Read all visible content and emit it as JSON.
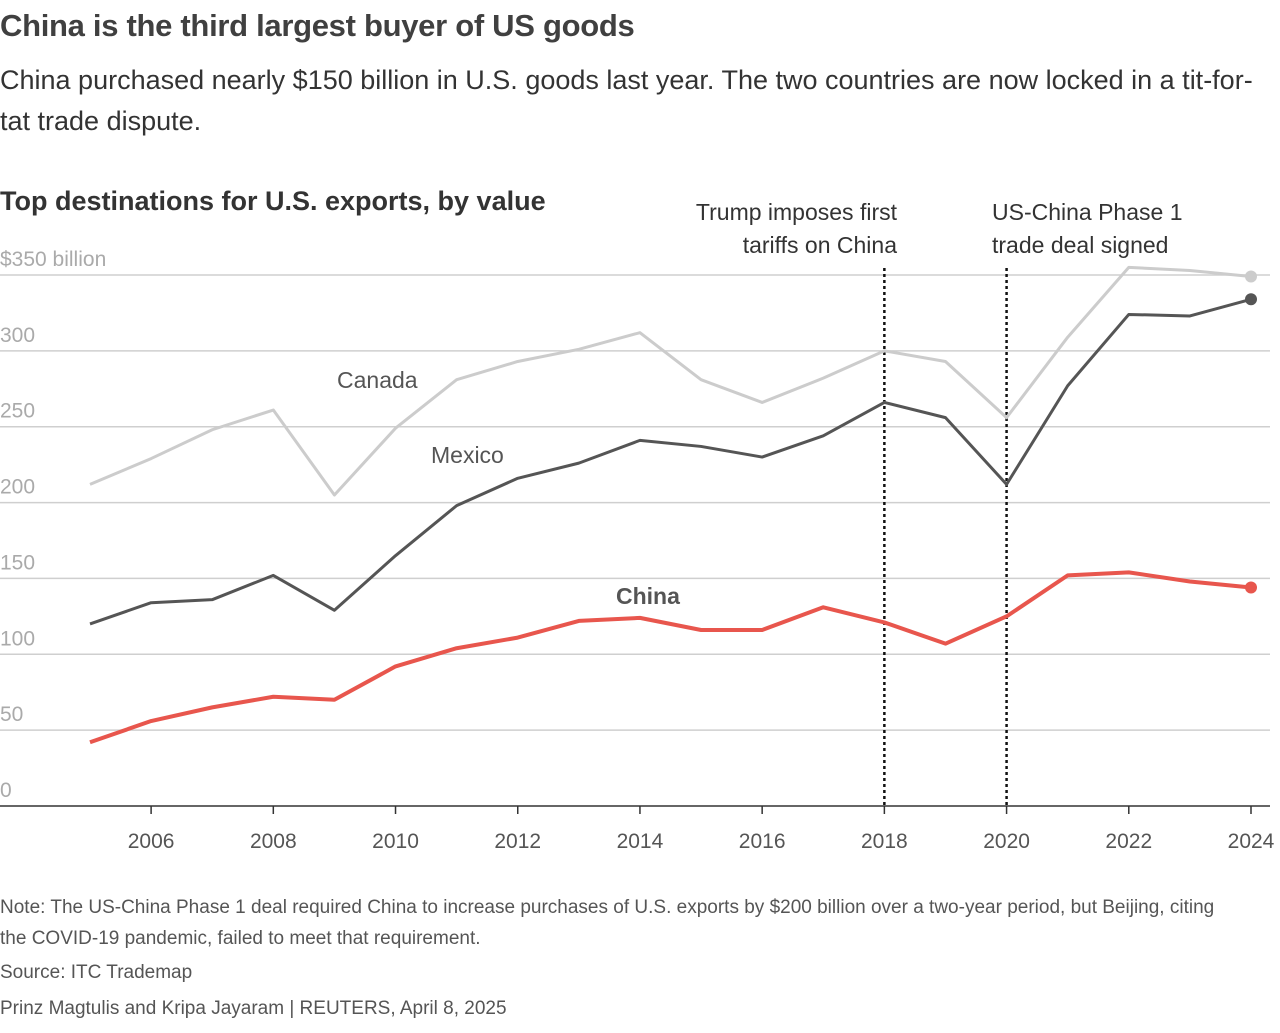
{
  "title": "China is the third largest buyer of US goods",
  "subtitle": "China purchased nearly $150 billion in U.S. goods last year. The two countries are now locked in a tit-for-tat trade dispute.",
  "note": "Note: The US-China Phase 1 deal required China to increase purchases of U.S. exports by $200 billion over a two-year period, but Beijing, citing the COVID-19 pandemic, failed to meet that requirement.",
  "source": "Source: ITC Trademap",
  "credit": "Prinz Magtulis and Kripa Jayaram | REUTERS, April 8, 2025",
  "chart_data": {
    "type": "line",
    "title": "Top destinations for U.S. exports, by value",
    "xlabel": "",
    "ylabel": "",
    "ylim": [
      0,
      350
    ],
    "xlim": [
      2005,
      2024
    ],
    "grid": true,
    "ytick_labels": [
      "0",
      "50",
      "100",
      "150",
      "200",
      "250",
      "300",
      "$350 billion"
    ],
    "yticks": [
      0,
      50,
      100,
      150,
      200,
      250,
      300,
      350
    ],
    "xticks": [
      2006,
      2008,
      2010,
      2012,
      2014,
      2016,
      2018,
      2020,
      2022,
      2024
    ],
    "xtick_labels": [
      "2006",
      "2008",
      "2010",
      "2012",
      "2014",
      "2016",
      "2018",
      "2020",
      "2022",
      "2024"
    ],
    "x": [
      2005,
      2006,
      2007,
      2008,
      2009,
      2010,
      2011,
      2012,
      2013,
      2014,
      2015,
      2016,
      2017,
      2018,
      2019,
      2020,
      2021,
      2022,
      2023,
      2024
    ],
    "series": [
      {
        "name": "Canada",
        "color": "#cccccc",
        "values": [
          212,
          229,
          248,
          261,
          205,
          249,
          281,
          293,
          301,
          312,
          281,
          266,
          282,
          300,
          293,
          256,
          309,
          355,
          353,
          349
        ]
      },
      {
        "name": "Mexico",
        "color": "#555555",
        "values": [
          120,
          134,
          136,
          152,
          129,
          165,
          198,
          216,
          226,
          241,
          237,
          230,
          244,
          266,
          256,
          212,
          277,
          324,
          323,
          334
        ]
      },
      {
        "name": "China",
        "color": "#e8564d",
        "values": [
          42,
          56,
          65,
          72,
          70,
          92,
          104,
          111,
          122,
          124,
          116,
          116,
          131,
          121,
          107,
          125,
          152,
          154,
          148,
          144
        ]
      }
    ],
    "annotations": [
      {
        "x": 2018,
        "text_lines": [
          "Trump imposes first",
          "tariffs on China"
        ]
      },
      {
        "x": 2020,
        "text_lines": [
          "US-China Phase 1",
          "trade deal signed"
        ]
      }
    ]
  }
}
